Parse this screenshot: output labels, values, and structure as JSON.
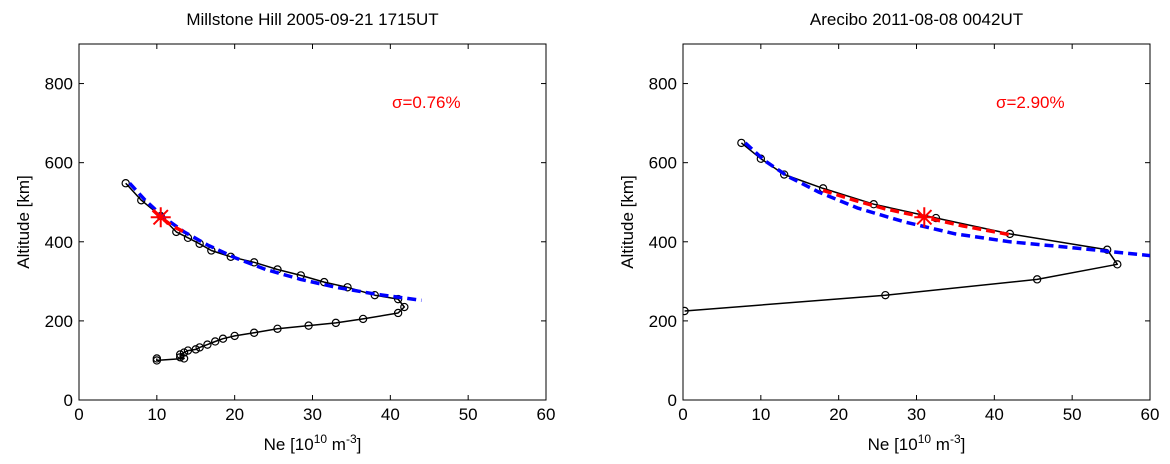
{
  "chart_data": [
    {
      "type": "line",
      "title_parts": [
        "Millstone Hill",
        "2005-09-21",
        "1715UT"
      ],
      "xlabel": {
        "pre": "Ne [10",
        "sup1": "10",
        "mid": " m",
        "sup2": "-3",
        "post": "]"
      },
      "ylabel": "Altitude [km]",
      "xlim": [
        0,
        60
      ],
      "ylim": [
        0,
        900
      ],
      "xticks": [
        0,
        10,
        20,
        30,
        40,
        50,
        60
      ],
      "yticks": [
        0,
        200,
        400,
        600,
        800
      ],
      "annotation": "σ=0.76%",
      "colors": {
        "measured": "#000000",
        "topside_fit": "#0000ff",
        "local_fit": "#ff0000",
        "peak_marker": "#ff0000"
      },
      "series": [
        {
          "role": "measured",
          "style": "line-circles",
          "x": [
            6.0,
            8.0,
            10.5,
            12.5,
            14.0,
            15.5,
            17.0,
            19.5,
            22.5,
            25.5,
            28.5,
            31.5,
            34.5,
            38.0,
            41.0,
            41.8,
            41.0,
            36.5,
            33.0,
            29.5,
            25.5,
            22.5,
            20.0,
            18.5,
            17.5,
            16.5,
            15.5,
            15.0,
            14.0,
            13.5,
            13.0,
            13.0,
            13.5,
            10.0,
            10.0
          ],
          "y": [
            548,
            505,
            465,
            425,
            410,
            395,
            378,
            362,
            348,
            330,
            315,
            298,
            285,
            265,
            255,
            235,
            220,
            205,
            195,
            188,
            180,
            170,
            162,
            155,
            148,
            140,
            133,
            128,
            125,
            120,
            115,
            108,
            105,
            100,
            105
          ]
        },
        {
          "role": "topside_fit",
          "style": "dashed",
          "x": [
            6.5,
            8.5,
            11.0,
            13.5,
            16.5,
            20.0,
            24.0,
            28.5,
            33.0,
            38.0,
            44.0
          ],
          "y": [
            548,
            505,
            460,
            425,
            392,
            360,
            330,
            305,
            285,
            268,
            252
          ]
        },
        {
          "role": "local_fit",
          "style": "dashed",
          "x": [
            9.5,
            10.5,
            12.0,
            13.5
          ],
          "y": [
            480,
            462,
            440,
            425
          ]
        }
      ],
      "peak_marker": {
        "x": 10.5,
        "y": 462
      }
    },
    {
      "type": "line",
      "title_parts": [
        "Arecibo",
        "2011-08-08",
        "0042UT"
      ],
      "xlabel": {
        "pre": "Ne [10",
        "sup1": "10",
        "mid": " m",
        "sup2": "-3",
        "post": "]"
      },
      "ylabel": "Altitude [km]",
      "xlim": [
        0,
        60
      ],
      "ylim": [
        0,
        900
      ],
      "xticks": [
        0,
        10,
        20,
        30,
        40,
        50,
        60
      ],
      "yticks": [
        0,
        200,
        400,
        600,
        800
      ],
      "annotation": "σ=2.90%",
      "colors": {
        "measured": "#000000",
        "topside_fit": "#0000ff",
        "local_fit": "#ff0000",
        "peak_marker": "#ff0000"
      },
      "series": [
        {
          "role": "measured",
          "style": "line-circles",
          "x": [
            7.5,
            10.0,
            13.0,
            18.0,
            24.5,
            32.5,
            42.0,
            54.5,
            55.8,
            45.5,
            26.0,
            0.2
          ],
          "y": [
            650,
            610,
            570,
            535,
            495,
            460,
            420,
            380,
            343,
            305,
            265,
            225
          ]
        },
        {
          "role": "topside_fit",
          "style": "dashed",
          "x": [
            8.0,
            10.5,
            13.5,
            17.5,
            22.5,
            28.5,
            35.0,
            42.0,
            50.0,
            60.0
          ],
          "y": [
            650,
            605,
            565,
            525,
            485,
            450,
            420,
            400,
            385,
            365
          ]
        },
        {
          "role": "local_fit",
          "style": "dashed",
          "x": [
            18.0,
            22.0,
            26.0,
            31.0,
            36.0,
            42.0
          ],
          "y": [
            530,
            505,
            483,
            462,
            440,
            418
          ]
        }
      ],
      "peak_marker": {
        "x": 31.0,
        "y": 462
      }
    }
  ]
}
